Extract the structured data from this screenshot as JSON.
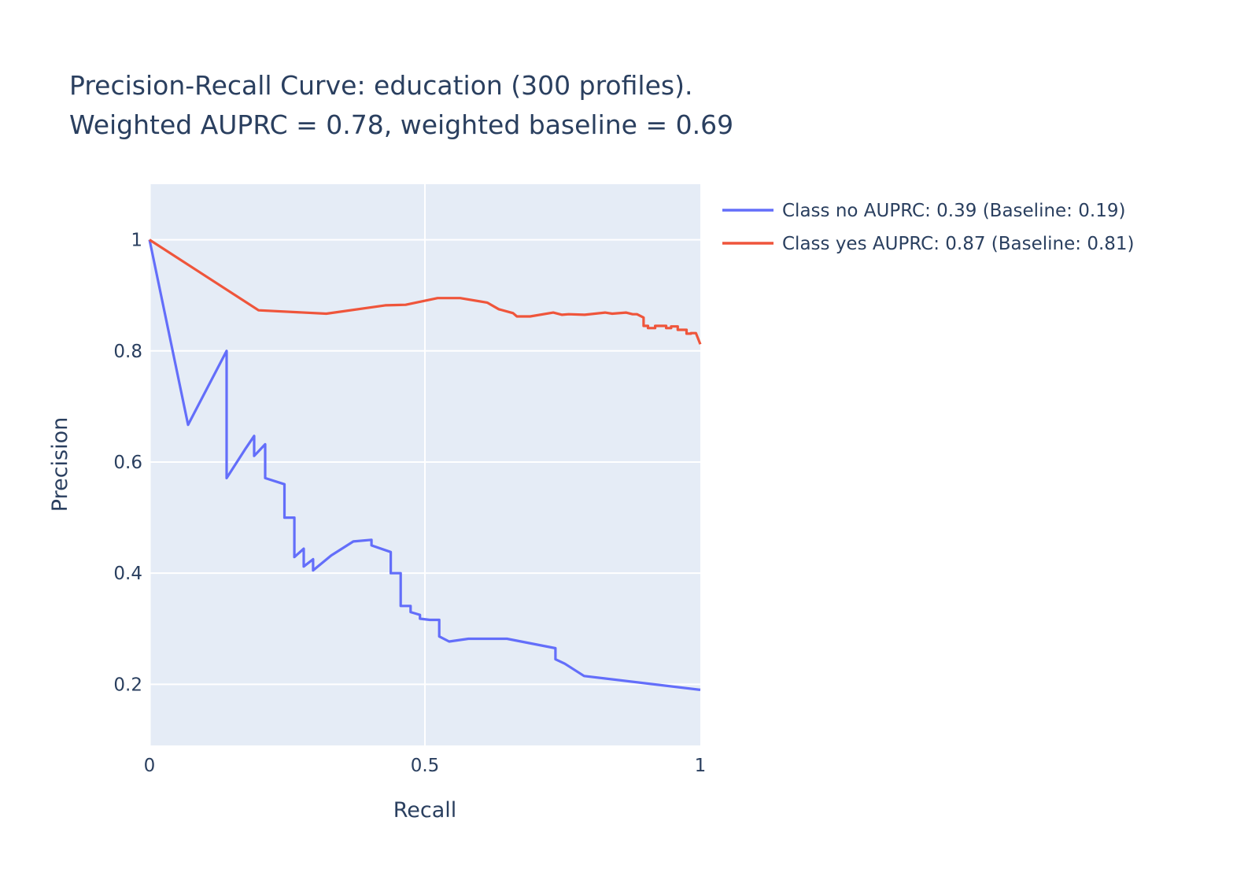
{
  "chart_data": {
    "type": "line",
    "title": "Precision-Recall Curve: education (300 profiles).",
    "subtitle": "Weighted AUPRC = 0.78, weighted baseline = 0.69",
    "xlabel": "Recall",
    "ylabel": "Precision",
    "xlim": [
      0,
      1
    ],
    "ylim": [
      0.09,
      1.1
    ],
    "x_ticks": [
      {
        "value": 0,
        "label": "0"
      },
      {
        "value": 0.5,
        "label": "0.5"
      },
      {
        "value": 1,
        "label": "1"
      }
    ],
    "y_ticks": [
      {
        "value": 0.2,
        "label": "0.2"
      },
      {
        "value": 0.4,
        "label": "0.4"
      },
      {
        "value": 0.6,
        "label": "0.6"
      },
      {
        "value": 0.8,
        "label": "0.8"
      },
      {
        "value": 1,
        "label": "1"
      }
    ],
    "grid": true,
    "legend_position": "top-right, outside plot",
    "plot_background": "#e5ecf6",
    "series": [
      {
        "name": "Class no AUPRC: 0.39 (Baseline: 0.19)",
        "color": "#636efa",
        "x": [
          0,
          0.07,
          0.14,
          0.14,
          0.175,
          0.19,
          0.19,
          0.21,
          0.21,
          0.245,
          0.245,
          0.263,
          0.263,
          0.28,
          0.28,
          0.297,
          0.297,
          0.33,
          0.37,
          0.403,
          0.403,
          0.438,
          0.438,
          0.456,
          0.456,
          0.474,
          0.474,
          0.491,
          0.491,
          0.509,
          0.526,
          0.526,
          0.544,
          0.579,
          0.649,
          0.737,
          0.737,
          0.754,
          0.789,
          1.0
        ],
        "y": [
          1.0,
          0.667,
          0.8,
          0.571,
          0.625,
          0.647,
          0.611,
          0.632,
          0.571,
          0.56,
          0.5,
          0.5,
          0.429,
          0.444,
          0.412,
          0.425,
          0.405,
          0.432,
          0.457,
          0.46,
          0.45,
          0.438,
          0.4,
          0.4,
          0.341,
          0.341,
          0.33,
          0.325,
          0.318,
          0.316,
          0.316,
          0.286,
          0.277,
          0.282,
          0.282,
          0.265,
          0.245,
          0.237,
          0.215,
          0.19
        ]
      },
      {
        "name": "Class yes AUPRC: 0.87 (Baseline: 0.81)",
        "color": "#ef553b",
        "x": [
          0,
          0.198,
          0.321,
          0.428,
          0.465,
          0.523,
          0.564,
          0.613,
          0.634,
          0.66,
          0.667,
          0.691,
          0.733,
          0.749,
          0.761,
          0.79,
          0.827,
          0.84,
          0.865,
          0.877,
          0.885,
          0.897,
          0.897,
          0.905,
          0.905,
          0.918,
          0.918,
          0.938,
          0.938,
          0.947,
          0.947,
          0.959,
          0.959,
          0.975,
          0.975,
          0.983,
          0.983,
          0.992,
          1.0
        ],
        "y": [
          1.0,
          0.873,
          0.867,
          0.882,
          0.883,
          0.895,
          0.895,
          0.887,
          0.875,
          0.868,
          0.862,
          0.862,
          0.869,
          0.865,
          0.866,
          0.865,
          0.869,
          0.867,
          0.869,
          0.866,
          0.866,
          0.86,
          0.845,
          0.845,
          0.841,
          0.841,
          0.845,
          0.845,
          0.841,
          0.841,
          0.844,
          0.844,
          0.838,
          0.838,
          0.831,
          0.831,
          0.832,
          0.832,
          0.812
        ]
      }
    ]
  }
}
